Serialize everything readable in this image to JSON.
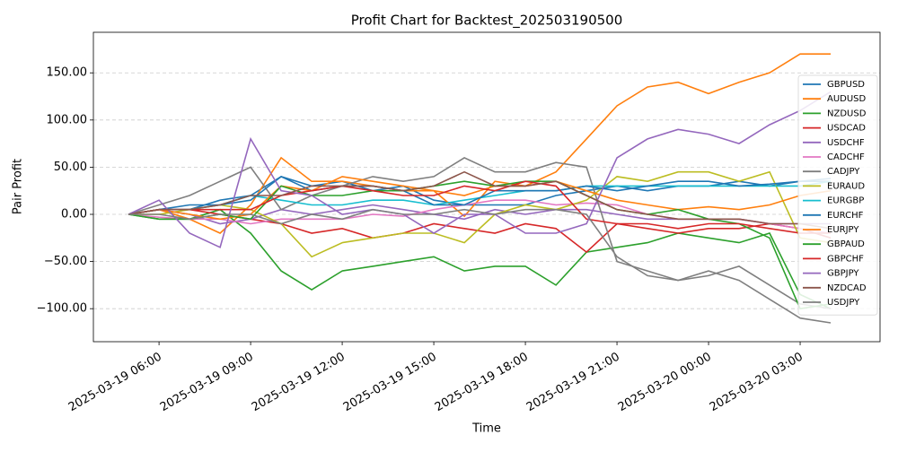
{
  "chart_data": {
    "type": "line",
    "title": "Profit Chart for Backtest_202503190500",
    "x_label": "Time",
    "y_label": "Pair Profit",
    "x": [
      "2025-03-19 05:00",
      "2025-03-19 06:00",
      "2025-03-19 07:00",
      "2025-03-19 08:00",
      "2025-03-19 09:00",
      "2025-03-19 10:00",
      "2025-03-19 11:00",
      "2025-03-19 12:00",
      "2025-03-19 13:00",
      "2025-03-19 14:00",
      "2025-03-19 15:00",
      "2025-03-19 16:00",
      "2025-03-19 17:00",
      "2025-03-19 18:00",
      "2025-03-19 19:00",
      "2025-03-19 20:00",
      "2025-03-19 21:00",
      "2025-03-19 22:00",
      "2025-03-19 23:00",
      "2025-03-20 00:00",
      "2025-03-20 01:00",
      "2025-03-20 02:00",
      "2025-03-20 03:00",
      "2025-03-20 04:00"
    ],
    "xlim": [
      "2025-03-19 03:51",
      "2025-03-20 05:37"
    ],
    "xticks": [
      "2025-03-19 06:00",
      "2025-03-19 09:00",
      "2025-03-19 12:00",
      "2025-03-19 15:00",
      "2025-03-19 18:00",
      "2025-03-19 21:00",
      "2025-03-20 00:00",
      "2025-03-20 03:00"
    ],
    "ylim": [
      -135,
      193
    ],
    "yticks": [
      {
        "value": -100,
        "label": "−100.00"
      },
      {
        "value": -50,
        "label": "−50.00"
      },
      {
        "value": 0,
        "label": "0.00"
      },
      {
        "value": 50,
        "label": "50.00"
      },
      {
        "value": 100,
        "label": "100.00"
      },
      {
        "value": 150,
        "label": "150.00"
      }
    ],
    "grid": true,
    "legend": "upper right",
    "series": [
      {
        "name": "GBPUSD",
        "color": "#1f77b4",
        "values": [
          0,
          5,
          5,
          15,
          20,
          40,
          30,
          35,
          25,
          30,
          15,
          10,
          10,
          10,
          20,
          25,
          30,
          25,
          30,
          30,
          35,
          30,
          35,
          35
        ]
      },
      {
        "name": "AUDUSD",
        "color": "#ff7f0e",
        "values": [
          0,
          5,
          -5,
          -20,
          10,
          60,
          35,
          35,
          30,
          25,
          25,
          -2,
          35,
          30,
          45,
          80,
          115,
          135,
          140,
          128,
          140,
          150,
          170,
          170
        ]
      },
      {
        "name": "NZDUSD",
        "color": "#2ca02c",
        "values": [
          0,
          -5,
          -5,
          5,
          -20,
          -60,
          -80,
          -60,
          -55,
          -50,
          -45,
          -60,
          -55,
          -55,
          -75,
          -40,
          -35,
          -30,
          -20,
          -25,
          -30,
          -20,
          -85,
          -100
        ]
      },
      {
        "name": "USDCAD",
        "color": "#d62728",
        "values": [
          0,
          5,
          5,
          0,
          -5,
          -10,
          -20,
          -15,
          -25,
          -20,
          -10,
          -15,
          -20,
          -10,
          -15,
          -40,
          -10,
          -15,
          -20,
          -15,
          -15,
          -10,
          -15,
          -25
        ]
      },
      {
        "name": "USDCHF",
        "color": "#9467bd",
        "values": [
          0,
          5,
          0,
          -10,
          -5,
          5,
          0,
          5,
          10,
          5,
          0,
          -5,
          5,
          0,
          5,
          5,
          0,
          -5,
          -5,
          -5,
          -5,
          -10,
          -10,
          -10
        ]
      },
      {
        "name": "CADCHF",
        "color": "#e377c2",
        "values": [
          0,
          -3,
          -5,
          -5,
          -10,
          -5,
          -5,
          -5,
          0,
          -2,
          5,
          10,
          15,
          15,
          10,
          12,
          10,
          0,
          -5,
          -5,
          -5,
          -10,
          -15,
          -20
        ]
      },
      {
        "name": "CADJPY",
        "color": "#7f7f7f",
        "values": [
          0,
          10,
          20,
          35,
          50,
          5,
          20,
          30,
          40,
          35,
          40,
          60,
          45,
          45,
          55,
          50,
          -50,
          -60,
          -70,
          -65,
          -55,
          -75,
          -95,
          -100
        ]
      },
      {
        "name": "EURAUD",
        "color": "#bcbd22",
        "values": [
          0,
          0,
          5,
          10,
          5,
          -10,
          -45,
          -30,
          -25,
          -20,
          -20,
          -30,
          0,
          10,
          5,
          15,
          40,
          35,
          45,
          45,
          35,
          45,
          -25,
          -30
        ]
      },
      {
        "name": "EURGBP",
        "color": "#17becf",
        "values": [
          0,
          5,
          5,
          10,
          20,
          15,
          10,
          10,
          15,
          15,
          10,
          15,
          20,
          25,
          25,
          30,
          30,
          30,
          30,
          30,
          30,
          30,
          30,
          35
        ]
      },
      {
        "name": "EURCHF",
        "color": "#1f77b4",
        "values": [
          0,
          5,
          10,
          10,
          15,
          40,
          25,
          30,
          30,
          25,
          10,
          10,
          25,
          25,
          25,
          30,
          25,
          30,
          35,
          35,
          30,
          32,
          35,
          38
        ]
      },
      {
        "name": "EURJPY",
        "color": "#ff7f0e",
        "values": [
          0,
          5,
          0,
          -5,
          0,
          30,
          25,
          40,
          35,
          30,
          25,
          20,
          30,
          30,
          35,
          25,
          15,
          10,
          5,
          8,
          5,
          10,
          20,
          25
        ]
      },
      {
        "name": "GBPAUD",
        "color": "#2ca02c",
        "values": [
          0,
          -5,
          -5,
          0,
          -5,
          30,
          20,
          20,
          25,
          25,
          30,
          35,
          30,
          35,
          35,
          20,
          5,
          0,
          5,
          -5,
          -10,
          -25,
          -100,
          -95
        ]
      },
      {
        "name": "GBPCHF",
        "color": "#d62728",
        "values": [
          0,
          5,
          5,
          5,
          5,
          20,
          25,
          30,
          25,
          20,
          20,
          30,
          25,
          35,
          30,
          -5,
          -10,
          -10,
          -15,
          -10,
          -10,
          -15,
          -20,
          -20
        ]
      },
      {
        "name": "GBPJPY",
        "color": "#9467bd",
        "values": [
          0,
          15,
          -20,
          -35,
          80,
          25,
          20,
          0,
          5,
          0,
          -20,
          0,
          0,
          -20,
          -20,
          -10,
          60,
          80,
          90,
          85,
          75,
          95,
          110,
          130
        ]
      },
      {
        "name": "NZDCAD",
        "color": "#8c564b",
        "values": [
          0,
          5,
          5,
          10,
          20,
          20,
          30,
          30,
          30,
          25,
          30,
          45,
          30,
          30,
          35,
          20,
          5,
          0,
          -5,
          -5,
          -5,
          -10,
          -10,
          -15
        ]
      },
      {
        "name": "USDJPY",
        "color": "#7f7f7f",
        "values": [
          0,
          0,
          -5,
          0,
          0,
          -10,
          0,
          -5,
          5,
          0,
          0,
          5,
          0,
          5,
          5,
          0,
          -45,
          -65,
          -70,
          -60,
          -70,
          -90,
          -110,
          -115
        ]
      }
    ]
  }
}
